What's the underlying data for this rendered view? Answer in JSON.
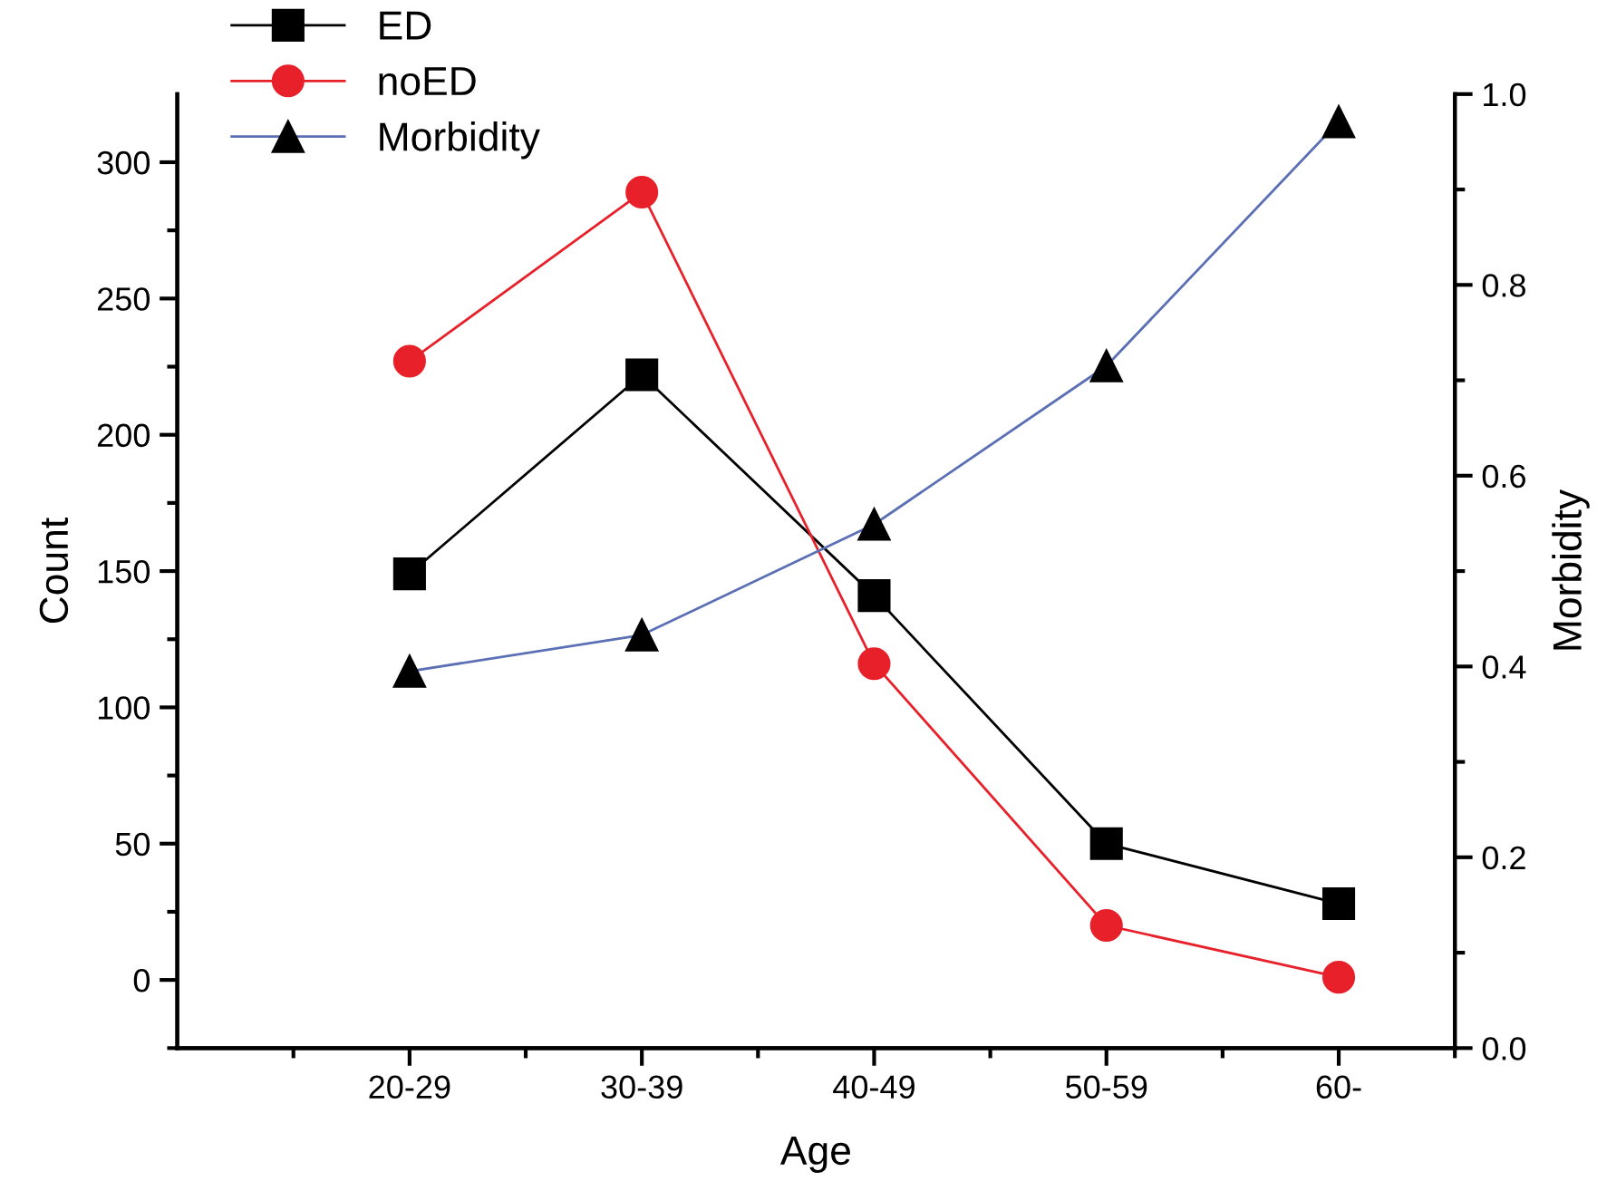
{
  "chart_data": {
    "type": "line",
    "xlabel": "Age",
    "ylabel": "Count",
    "y2label": "Morbidity",
    "categories": [
      "20-29",
      "30-39",
      "40-49",
      "50-59",
      "60-"
    ],
    "series": [
      {
        "name": "ED",
        "color": "#000000",
        "marker": "square",
        "values": [
          149,
          222,
          141,
          50,
          28
        ]
      },
      {
        "name": "noED",
        "color": "#e8202a",
        "marker": "circle",
        "values": [
          227,
          289,
          116,
          20,
          1
        ]
      },
      {
        "name": "Morbidity",
        "color": "#5b6fb5",
        "marker": "triangle",
        "axis": "y2",
        "values": [
          0.395,
          0.433,
          0.549,
          0.715,
          0.971
        ]
      }
    ],
    "ylim": [
      -25,
      325
    ],
    "yticks": [
      0,
      50,
      100,
      150,
      200,
      250,
      300
    ],
    "y2lim": [
      0,
      1.0
    ],
    "y2ticks": [
      {
        "value": 0,
        "label": "0.0"
      },
      {
        "value": 0.2,
        "label": "0.2"
      },
      {
        "value": 0.4,
        "label": "0.4"
      },
      {
        "value": 0.6,
        "label": "0.6"
      },
      {
        "value": 0.8,
        "label": "0.8"
      },
      {
        "value": 1.0,
        "label": "1.0"
      }
    ],
    "grid": false,
    "legend": "top left",
    "line_style": "solid"
  }
}
